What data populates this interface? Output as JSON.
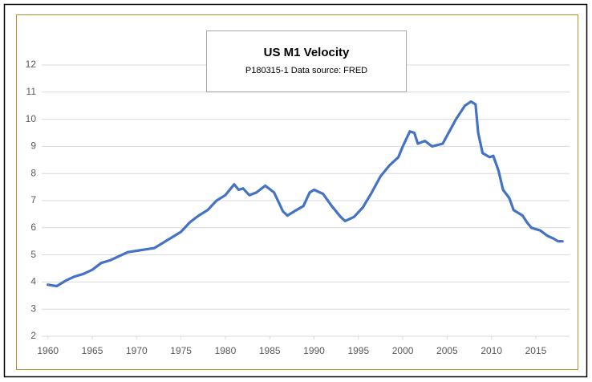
{
  "chart_data": {
    "type": "line",
    "title": "US M1 Velocity",
    "subtitle": "P180315-1 Data source: FRED",
    "x": [
      1960,
      1961,
      1962,
      1963,
      1964,
      1965,
      1966,
      1967,
      1968,
      1969,
      1970,
      1971,
      1972,
      1973,
      1974,
      1975,
      1976,
      1977,
      1978,
      1979,
      1980,
      1981,
      1981.5,
      1982,
      1982.7,
      1983.5,
      1984.5,
      1985.5,
      1986.5,
      1987,
      1988,
      1988.8,
      1989.5,
      1990,
      1991,
      1992,
      1993,
      1993.5,
      1994.5,
      1995.5,
      1996.5,
      1997.5,
      1998.5,
      1999.5,
      2000,
      2000.8,
      2001.3,
      2001.7,
      2002.5,
      2003.3,
      2004.5,
      2005,
      2006,
      2007,
      2007.7,
      2008.2,
      2008.5,
      2009,
      2009.8,
      2010.2,
      2010.8,
      2011.3,
      2012,
      2012.5,
      2013.5,
      2014,
      2014.5,
      2015.5,
      2016.3,
      2017,
      2017.5,
      2018
    ],
    "series": [
      {
        "name": "M1 Velocity",
        "color": "#4472c4",
        "values": [
          3.9,
          3.85,
          4.05,
          4.2,
          4.3,
          4.45,
          4.7,
          4.8,
          4.95,
          5.1,
          5.15,
          5.2,
          5.25,
          5.45,
          5.65,
          5.85,
          6.2,
          6.45,
          6.65,
          7.0,
          7.2,
          7.6,
          7.4,
          7.45,
          7.2,
          7.3,
          7.55,
          7.3,
          6.6,
          6.45,
          6.65,
          6.8,
          7.3,
          7.4,
          7.25,
          6.8,
          6.4,
          6.25,
          6.4,
          6.75,
          7.3,
          7.9,
          8.3,
          8.6,
          9.0,
          9.55,
          9.5,
          9.1,
          9.2,
          9.0,
          9.1,
          9.4,
          10.0,
          10.5,
          10.65,
          10.55,
          9.5,
          8.75,
          8.6,
          8.65,
          8.1,
          7.4,
          7.1,
          6.65,
          6.45,
          6.2,
          6.0,
          5.9,
          5.7,
          5.6,
          5.5,
          5.5
        ]
      }
    ],
    "xlim": [
      1959.3,
      2018.8
    ],
    "xticks": [
      1960,
      1965,
      1970,
      1975,
      1980,
      1985,
      1990,
      1995,
      2000,
      2005,
      2010,
      2015
    ],
    "ylim": [
      2,
      12
    ],
    "yticks": [
      2,
      3,
      4,
      5,
      6,
      7,
      8,
      9,
      10,
      11,
      12
    ],
    "grid": true
  }
}
